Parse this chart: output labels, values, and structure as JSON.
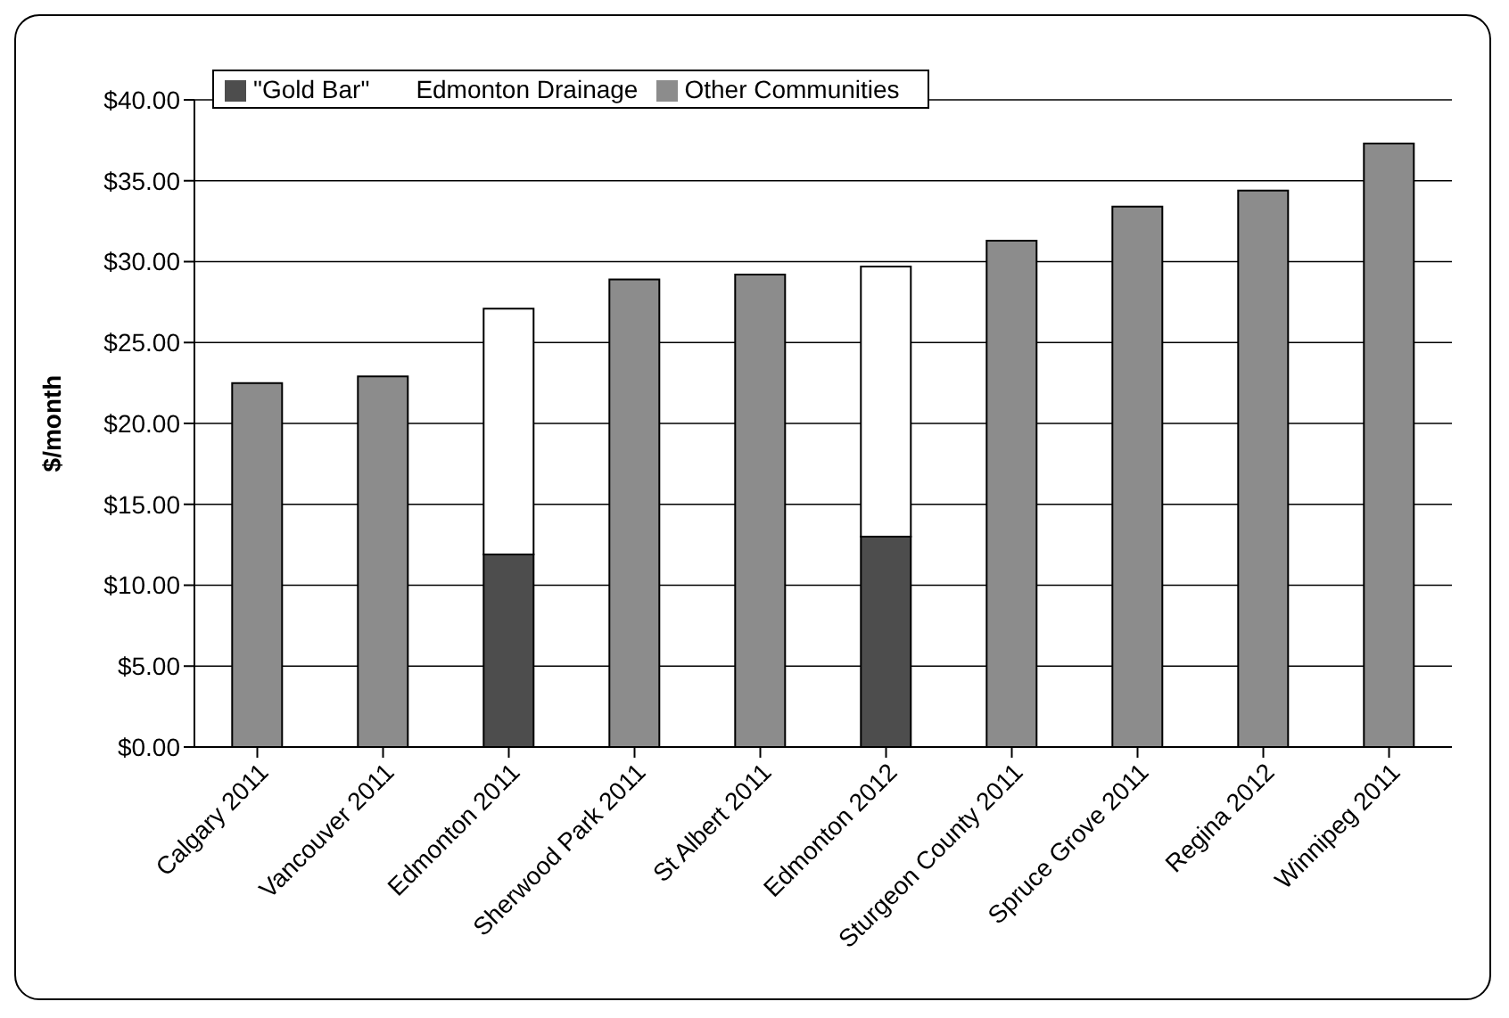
{
  "chart_data": {
    "type": "bar",
    "stacked": true,
    "ylabel": "$/month",
    "categories": [
      "Calgary 2011",
      "Vancouver 2011",
      "Edmonton 2011",
      "Sherwood Park 2011",
      "St Albert 2011",
      "Edmonton 2012",
      "Sturgeon County 2011",
      "Spruce Grove 2011",
      "Regina 2012",
      "Winnipeg 2011"
    ],
    "series": [
      {
        "name": "Other Communities",
        "color": "#8c8c8c",
        "values": [
          22.5,
          22.9,
          null,
          28.9,
          29.2,
          null,
          31.3,
          33.4,
          34.4,
          37.3
        ]
      },
      {
        "name": "\"Gold Bar\"",
        "color": "#4d4d4d",
        "values": [
          null,
          null,
          11.9,
          null,
          null,
          13.0,
          null,
          null,
          null,
          null
        ]
      },
      {
        "name": "Edmonton Drainage",
        "color": "#ffffff",
        "values": [
          null,
          null,
          15.2,
          null,
          null,
          16.7,
          null,
          null,
          null,
          null
        ]
      }
    ],
    "ylim": [
      0,
      40
    ],
    "yticks": [
      {
        "value": 0,
        "label": "$0.00"
      },
      {
        "value": 5,
        "label": "$5.00"
      },
      {
        "value": 10,
        "label": "$10.00"
      },
      {
        "value": 15,
        "label": "$15.00"
      },
      {
        "value": 20,
        "label": "$20.00"
      },
      {
        "value": 25,
        "label": "$25.00"
      },
      {
        "value": 30,
        "label": "$30.00"
      },
      {
        "value": 35,
        "label": "$35.00"
      },
      {
        "value": 40,
        "label": "$40.00"
      }
    ],
    "grid": "y",
    "legend": "top left"
  }
}
